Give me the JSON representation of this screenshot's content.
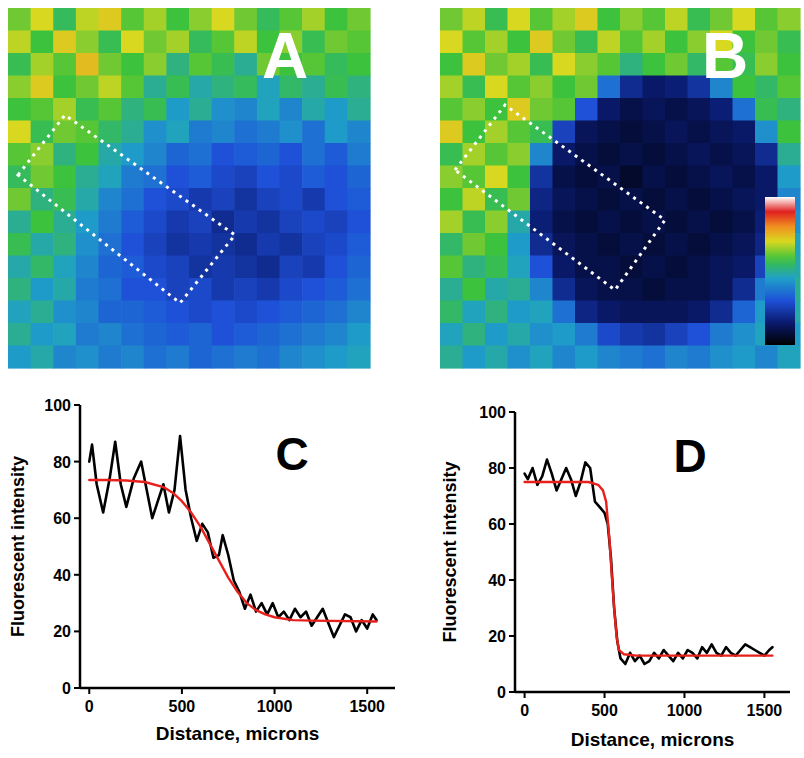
{
  "chart_data": [
    {
      "type": "heatmap",
      "title": "A",
      "tick_labels": false,
      "color_range": [
        0,
        100
      ],
      "cells": [
        [
          62,
          70,
          55,
          68,
          72,
          60,
          66,
          58,
          64,
          70,
          62,
          55,
          60,
          66,
          58,
          62
        ],
        [
          68,
          58,
          72,
          64,
          56,
          70,
          62,
          66,
          55,
          60,
          68,
          58,
          64,
          56,
          62,
          60
        ],
        [
          56,
          66,
          60,
          74,
          62,
          58,
          64,
          52,
          60,
          56,
          50,
          62,
          58,
          60,
          55,
          58
        ],
        [
          64,
          72,
          58,
          62,
          68,
          60,
          50,
          56,
          48,
          52,
          55,
          46,
          54,
          50,
          56,
          52
        ],
        [
          58,
          60,
          66,
          56,
          60,
          52,
          56,
          44,
          50,
          42,
          40,
          46,
          40,
          48,
          44,
          50
        ],
        [
          70,
          56,
          62,
          60,
          54,
          50,
          42,
          46,
          38,
          40,
          36,
          38,
          42,
          36,
          44,
          40
        ],
        [
          60,
          64,
          52,
          58,
          48,
          44,
          40,
          34,
          36,
          30,
          32,
          34,
          30,
          36,
          32,
          38
        ],
        [
          55,
          62,
          58,
          50,
          46,
          38,
          36,
          30,
          32,
          28,
          26,
          30,
          28,
          32,
          30,
          34
        ],
        [
          62,
          52,
          56,
          48,
          40,
          36,
          30,
          28,
          24,
          26,
          22,
          26,
          28,
          24,
          30,
          32
        ],
        [
          50,
          58,
          50,
          44,
          38,
          32,
          28,
          24,
          26,
          20,
          24,
          22,
          26,
          28,
          26,
          30
        ],
        [
          56,
          48,
          52,
          42,
          36,
          30,
          26,
          22,
          24,
          22,
          20,
          24,
          22,
          26,
          28,
          32
        ],
        [
          48,
          54,
          46,
          40,
          34,
          32,
          28,
          26,
          22,
          24,
          22,
          20,
          26,
          24,
          30,
          34
        ],
        [
          52,
          44,
          48,
          38,
          36,
          30,
          30,
          26,
          28,
          24,
          26,
          24,
          28,
          30,
          32,
          36
        ],
        [
          46,
          50,
          42,
          40,
          34,
          34,
          32,
          30,
          28,
          30,
          28,
          30,
          32,
          34,
          36,
          40
        ],
        [
          50,
          44,
          46,
          38,
          40,
          36,
          34,
          32,
          34,
          30,
          32,
          34,
          36,
          38,
          40,
          44
        ],
        [
          44,
          48,
          40,
          42,
          38,
          40,
          36,
          38,
          34,
          36,
          38,
          36,
          40,
          42,
          44,
          46
        ]
      ]
    },
    {
      "type": "heatmap",
      "title": "B",
      "tick_labels": false,
      "color_range": [
        0,
        100
      ],
      "colorbar_range": [
        0,
        100
      ],
      "cells": [
        [
          62,
          68,
          56,
          70,
          60,
          66,
          72,
          58,
          64,
          60,
          68,
          56,
          62,
          70,
          60,
          64
        ],
        [
          70,
          60,
          66,
          58,
          72,
          62,
          56,
          68,
          60,
          66,
          58,
          64,
          70,
          58,
          62,
          56
        ],
        [
          58,
          72,
          62,
          66,
          56,
          70,
          64,
          60,
          52,
          58,
          62,
          54,
          60,
          56,
          64,
          58
        ],
        [
          66,
          56,
          70,
          60,
          64,
          58,
          62,
          36,
          20,
          14,
          16,
          22,
          40,
          58,
          54,
          60
        ],
        [
          60,
          64,
          58,
          72,
          62,
          60,
          30,
          14,
          10,
          12,
          10,
          12,
          16,
          36,
          56,
          52
        ],
        [
          72,
          58,
          66,
          60,
          56,
          26,
          12,
          10,
          8,
          10,
          12,
          10,
          12,
          14,
          42,
          58
        ],
        [
          56,
          66,
          60,
          64,
          40,
          14,
          10,
          8,
          10,
          8,
          10,
          12,
          10,
          12,
          20,
          50
        ],
        [
          64,
          60,
          70,
          58,
          22,
          10,
          8,
          10,
          6,
          10,
          8,
          10,
          12,
          10,
          14,
          44
        ],
        [
          58,
          68,
          56,
          62,
          18,
          12,
          10,
          8,
          10,
          8,
          10,
          8,
          10,
          12,
          14,
          40
        ],
        [
          66,
          56,
          64,
          48,
          16,
          10,
          8,
          10,
          8,
          10,
          8,
          10,
          8,
          10,
          16,
          42
        ],
        [
          54,
          62,
          58,
          44,
          20,
          12,
          10,
          8,
          10,
          8,
          10,
          8,
          10,
          12,
          18,
          46
        ],
        [
          60,
          52,
          56,
          46,
          30,
          14,
          10,
          10,
          8,
          10,
          8,
          10,
          12,
          14,
          26,
          48
        ],
        [
          50,
          58,
          48,
          50,
          40,
          20,
          12,
          10,
          10,
          8,
          10,
          10,
          12,
          20,
          38,
          50
        ],
        [
          54,
          46,
          52,
          44,
          46,
          36,
          18,
          14,
          12,
          12,
          12,
          14,
          20,
          34,
          44,
          48
        ],
        [
          46,
          52,
          44,
          48,
          42,
          44,
          38,
          28,
          24,
          22,
          26,
          30,
          38,
          42,
          46,
          44
        ],
        [
          50,
          44,
          48,
          42,
          46,
          40,
          44,
          40,
          38,
          36,
          40,
          38,
          42,
          44,
          40,
          46
        ]
      ]
    },
    {
      "type": "line",
      "title": "C",
      "x_label": "Distance, microns",
      "y_label": "Fluorescent intensity",
      "xlim": [
        -50,
        1650
      ],
      "ylim": [
        0,
        100
      ],
      "xticks": [
        0,
        500,
        1000,
        1500
      ],
      "yticks": [
        0,
        20,
        40,
        60,
        80,
        100
      ],
      "series": [
        {
          "color": "#000000",
          "x": [
            0,
            15,
            40,
            75,
            110,
            140,
            170,
            200,
            240,
            280,
            310,
            340,
            370,
            400,
            430,
            460,
            490,
            520,
            550,
            580,
            610,
            640,
            670,
            700,
            720,
            750,
            780,
            810,
            840,
            870,
            900,
            930,
            960,
            990,
            1020,
            1050,
            1080,
            1110,
            1140,
            1170,
            1200,
            1230,
            1260,
            1290,
            1320,
            1350,
            1380,
            1410,
            1440,
            1470,
            1500,
            1530,
            1550
          ],
          "values": [
            80,
            86,
            72,
            62,
            74,
            87,
            72,
            64,
            74,
            80,
            70,
            60,
            66,
            72,
            62,
            70,
            89,
            70,
            60,
            52,
            58,
            55,
            46,
            47,
            54,
            47,
            38,
            34,
            28,
            33,
            27,
            30,
            26,
            30,
            25,
            27,
            24,
            28,
            25,
            27,
            22,
            25,
            28,
            23,
            18,
            22,
            26,
            25,
            20,
            24,
            21,
            26,
            24
          ]
        },
        {
          "color": "#e8201c",
          "x": [
            0,
            100,
            200,
            300,
            400,
            450,
            500,
            550,
            600,
            650,
            700,
            750,
            800,
            850,
            900,
            950,
            1000,
            1100,
            1200,
            1550
          ],
          "values": [
            73.5,
            73.5,
            73.3,
            72.8,
            71,
            69,
            66,
            62,
            57,
            51,
            45,
            39,
            34,
            30,
            27.5,
            26,
            25,
            24,
            23.8,
            23.5
          ]
        }
      ]
    },
    {
      "type": "line",
      "title": "D",
      "x_label": "Distance, microns",
      "y_label": "Fluorescent intensity",
      "xlim": [
        -60,
        1660
      ],
      "ylim": [
        0,
        100
      ],
      "xticks": [
        0,
        500,
        1000,
        1500
      ],
      "yticks": [
        0,
        20,
        40,
        60,
        80,
        100
      ],
      "series": [
        {
          "color": "#000000",
          "x": [
            0,
            20,
            50,
            80,
            110,
            140,
            170,
            200,
            230,
            260,
            290,
            320,
            350,
            380,
            410,
            440,
            470,
            500,
            520,
            540,
            560,
            580,
            600,
            630,
            660,
            690,
            720,
            750,
            780,
            810,
            840,
            870,
            900,
            930,
            960,
            990,
            1020,
            1050,
            1080,
            1110,
            1140,
            1170,
            1200,
            1230,
            1260,
            1290,
            1320,
            1350,
            1380,
            1410,
            1440,
            1470,
            1500,
            1530,
            1550
          ],
          "values": [
            78,
            76,
            80,
            74,
            77,
            83,
            78,
            72,
            76,
            80,
            76,
            70,
            75,
            82,
            80,
            68,
            66,
            64,
            60,
            48,
            30,
            18,
            12,
            10,
            14,
            11,
            13,
            10,
            11,
            14,
            12,
            15,
            13,
            11,
            14,
            12,
            15,
            14,
            12,
            16,
            14,
            17,
            14,
            13,
            16,
            14,
            13,
            15,
            17,
            16,
            15,
            14,
            13,
            15,
            16
          ]
        },
        {
          "color": "#e8201c",
          "x": [
            0,
            400,
            460,
            490,
            510,
            530,
            545,
            560,
            575,
            590,
            620,
            700,
            1550
          ],
          "values": [
            75,
            75,
            74,
            72,
            68,
            55,
            42,
            30,
            20,
            15,
            13.5,
            13,
            13
          ]
        }
      ]
    }
  ]
}
